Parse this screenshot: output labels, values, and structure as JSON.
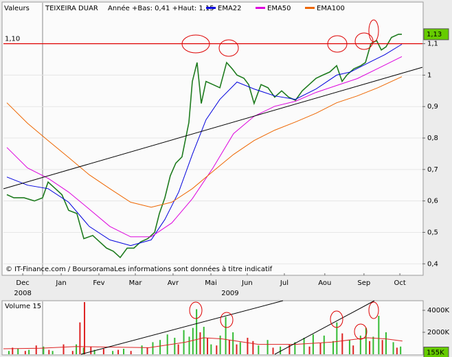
{
  "chart_data": [
    {
      "type": "line",
      "header_label": "Valeurs",
      "title": "TEIXEIRA DUAR",
      "subtitle": "Année +Bas: 0,41 +Haut: 1,15",
      "source": "© IT-Finance.com / BoursoramaLes informations sont données à titre indicatif",
      "xlim": [
        0,
        230
      ],
      "ylim": [
        0.37,
        1.228
      ],
      "grid": true,
      "xticks": [
        {
          "value": 10.6,
          "label": "Dec"
        },
        {
          "value": 31.7,
          "label": "Jan"
        },
        {
          "value": 52.4,
          "label": "Fev"
        },
        {
          "value": 72.4,
          "label": "Mar"
        },
        {
          "value": 93.1,
          "label": "Avr"
        },
        {
          "value": 113.9,
          "label": "Mai"
        },
        {
          "value": 133.8,
          "label": "Jun"
        },
        {
          "value": 154.2,
          "label": "Jul"
        },
        {
          "value": 176.4,
          "label": "Aou"
        },
        {
          "value": 197.9,
          "label": "Sep"
        },
        {
          "value": 217.6,
          "label": "Oct"
        }
      ],
      "years": [
        {
          "value": 10.6,
          "label": "2008"
        },
        {
          "value": 124.4,
          "label": "2009"
        }
      ],
      "yticks": [
        {
          "value": 0.4,
          "label": "0,4"
        },
        {
          "value": 0.5,
          "label": "0,5"
        },
        {
          "value": 0.6,
          "label": "0,6"
        },
        {
          "value": 0.7,
          "label": "0,7"
        },
        {
          "value": 0.8,
          "label": "0,8"
        },
        {
          "value": 0.9,
          "label": "0,9"
        },
        1,
        {
          "value": 1.1,
          "label": "1,1"
        }
      ],
      "ref_line": {
        "value": 1.1,
        "label": "1,10",
        "color": "#e00000"
      },
      "last": {
        "value": 1.13,
        "label": "1,13",
        "color": "#66cc00"
      },
      "series": [
        {
          "color": "#1e7b1e",
          "width": 1.6,
          "x": [
            1.9,
            5.7,
            11.3,
            17,
            21.5,
            24.5,
            28.3,
            32.1,
            35.8,
            40.3,
            44.1,
            49,
            52.8,
            56.6,
            60.3,
            64.1,
            67.9,
            71.6,
            75.4,
            79.2,
            83,
            85.6,
            88.6,
            91.6,
            94.6,
            98,
            101.8,
            103.7,
            106.3,
            108.6,
            111.2,
            115,
            118.8,
            122.5,
            125.6,
            128.2,
            132,
            134.6,
            137.6,
            141.4,
            145.2,
            148.9,
            152.7,
            156.5,
            160.3,
            164,
            167.8,
            171.6,
            175.3,
            179.1,
            182.9,
            185.9,
            188.5,
            192.3,
            196.1,
            198.7,
            201.7,
            204.8,
            207.4,
            210,
            213,
            216.8,
            218.7
          ],
          "values": [
            0.62,
            0.61,
            0.61,
            0.6,
            0.61,
            0.66,
            0.64,
            0.62,
            0.57,
            0.56,
            0.48,
            0.49,
            0.47,
            0.45,
            0.44,
            0.42,
            0.45,
            0.45,
            0.47,
            0.48,
            0.5,
            0.56,
            0.61,
            0.68,
            0.72,
            0.74,
            0.85,
            0.98,
            1.04,
            0.91,
            0.98,
            0.97,
            0.96,
            1.04,
            1.02,
            1.0,
            0.99,
            0.97,
            0.91,
            0.97,
            0.96,
            0.93,
            0.95,
            0.93,
            0.92,
            0.95,
            0.97,
            0.99,
            1.0,
            1.01,
            1.03,
            0.98,
            1.0,
            1.02,
            1.03,
            1.04,
            1.1,
            1.11,
            1.08,
            1.09,
            1.12,
            1.13,
            1.13
          ]
        },
        {
          "name": "EMA22",
          "color": "#0000dd",
          "width": 1,
          "x": [
            1.9,
            13.2,
            24.5,
            35.8,
            47.1,
            58.4,
            69.8,
            81.1,
            88.6,
            96.2,
            103.7,
            111.2,
            118.8,
            128.2,
            137.6,
            148.9,
            160.3,
            171.6,
            182.9,
            190.4,
            201.7,
            209.3,
            218.7
          ],
          "values": [
            0.676,
            0.65,
            0.639,
            0.596,
            0.519,
            0.476,
            0.458,
            0.476,
            0.541,
            0.628,
            0.748,
            0.858,
            0.923,
            0.978,
            0.956,
            0.934,
            0.923,
            0.956,
            1.0,
            1.01,
            1.043,
            1.065,
            1.098
          ]
        },
        {
          "name": "EMA50",
          "color": "#dd00dd",
          "width": 1,
          "x": [
            1.9,
            13.2,
            24.5,
            35.8,
            47.1,
            58.4,
            69.8,
            81.1,
            92.4,
            103.7,
            115,
            126.3,
            137.6,
            148.9,
            160.3,
            171.6,
            182.9,
            194.2,
            205.5,
            218.7
          ],
          "values": [
            0.77,
            0.705,
            0.672,
            0.628,
            0.574,
            0.519,
            0.486,
            0.486,
            0.53,
            0.607,
            0.705,
            0.814,
            0.869,
            0.901,
            0.917,
            0.945,
            0.967,
            0.989,
            1.021,
            1.059
          ]
        },
        {
          "name": "EMA100",
          "color": "#ee6600",
          "width": 1,
          "x": [
            1.9,
            13.2,
            24.5,
            35.8,
            47.1,
            58.4,
            69.8,
            81.1,
            92.4,
            103.7,
            115,
            126.3,
            137.6,
            148.9,
            160.3,
            171.6,
            182.9,
            194.2,
            205.5,
            218.7
          ],
          "values": [
            0.912,
            0.847,
            0.792,
            0.738,
            0.683,
            0.639,
            0.596,
            0.58,
            0.596,
            0.639,
            0.694,
            0.748,
            0.792,
            0.825,
            0.851,
            0.879,
            0.912,
            0.934,
            0.96,
            0.995
          ]
        }
      ]
    },
    {
      "type": "bar",
      "xlim": [
        0,
        230
      ],
      "ylim": [
        0,
        4750
      ],
      "yticks": [
        {
          "value": 2000,
          "label": "2000K"
        },
        {
          "value": 4000,
          "label": "4000K"
        }
      ],
      "last": {
        "value": 155,
        "label": "155K",
        "color": "#66cc00"
      },
      "series": [
        {
          "type": "bar",
          "color": "#33bb33",
          "x": [
            3,
            8,
            14,
            22,
            27,
            40,
            44,
            50,
            60,
            66,
            76,
            82,
            86,
            90,
            94,
            99,
            102,
            104,
            106,
            110,
            114,
            119,
            122,
            126,
            130,
            140,
            145,
            152,
            160,
            165,
            170,
            176,
            181,
            183,
            190,
            196,
            199,
            203,
            206,
            210,
            214,
            218
          ],
          "values": [
            300,
            500,
            400,
            700,
            300,
            900,
            600,
            400,
            300,
            500,
            800,
            1100,
            1300,
            1800,
            1500,
            2200,
            1600,
            2400,
            4100,
            2500,
            900,
            1700,
            3400,
            2000,
            1100,
            800,
            1300,
            700,
            1100,
            1500,
            1800,
            1700,
            1200,
            2900,
            1300,
            1700,
            2400,
            1600,
            3500,
            2000,
            1100,
            700
          ]
        },
        {
          "type": "bar",
          "color": "#dd2222",
          "x": [
            5,
            12,
            18,
            25,
            33,
            38,
            42,
            44.5,
            48,
            55,
            63,
            70,
            79,
            96,
            108,
            112,
            117,
            124,
            128,
            134,
            137,
            148,
            157,
            168,
            174,
            186,
            192,
            201,
            208,
            216
          ],
          "values": [
            600,
            300,
            800,
            400,
            900,
            300,
            2900,
            4750,
            700,
            500,
            400,
            300,
            600,
            900,
            2000,
            1500,
            800,
            1300,
            900,
            1500,
            1200,
            600,
            900,
            700,
            1000,
            1900,
            800,
            1200,
            1300,
            600
          ]
        },
        {
          "type": "line",
          "name": "Volume 15",
          "color": "#dd2222",
          "width": 1,
          "x": [
            0,
            20,
            40,
            60,
            80,
            100,
            110,
            120,
            140,
            160,
            180,
            200,
            210,
            219
          ],
          "values": [
            500,
            550,
            700,
            650,
            600,
            1100,
            1500,
            1400,
            900,
            900,
            1100,
            1500,
            1400,
            1200
          ]
        }
      ]
    }
  ]
}
